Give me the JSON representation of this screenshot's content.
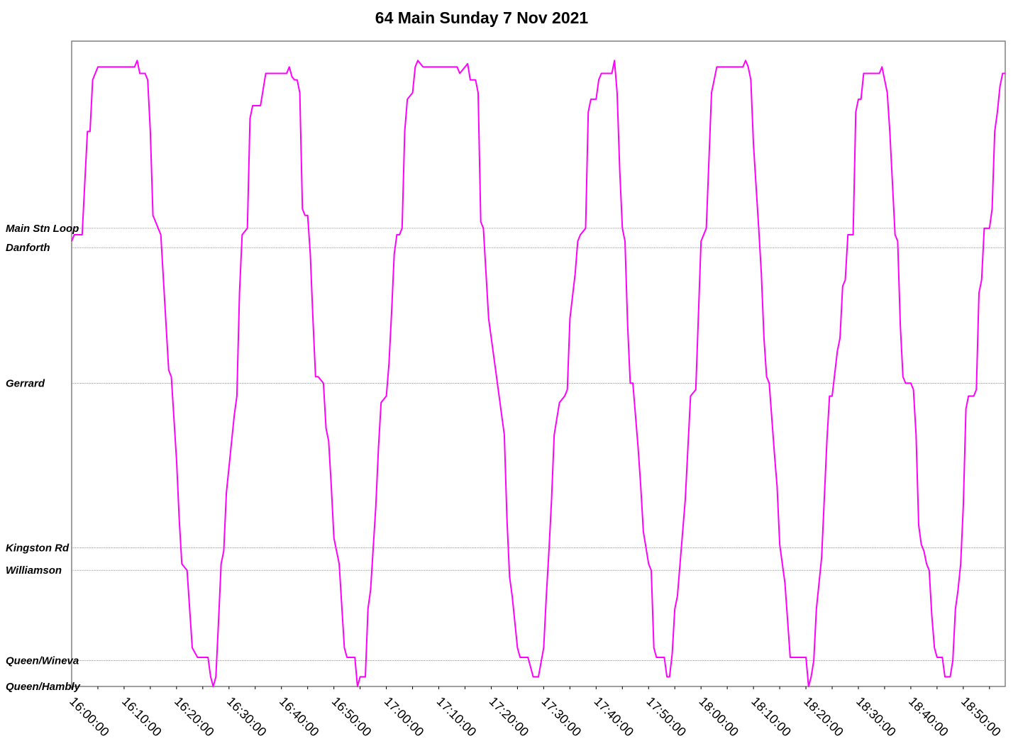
{
  "title": "64 Main Sunday 7 Nov 2021",
  "chart_data": {
    "type": "line",
    "title": "64 Main Sunday 7 Nov 2021",
    "xlabel": "",
    "ylabel": "",
    "x_range": [
      "16:00:00",
      "18:58:00"
    ],
    "x_ticks": [
      "16:00:00",
      "16:10:00",
      "16:20:00",
      "16:30:00",
      "16:40:00",
      "16:50:00",
      "17:00:00",
      "17:10:00",
      "17:20:00",
      "17:30:00",
      "17:40:00",
      "17:50:00",
      "18:00:00",
      "18:10:00",
      "18:20:00",
      "18:30:00",
      "18:40:00",
      "18:50:00"
    ],
    "y_stops": [
      {
        "name": "Main Stn Loop",
        "km": 7.1
      },
      {
        "name": "Danforth",
        "km": 6.8
      },
      {
        "name": "Gerrard",
        "km": 4.7
      },
      {
        "name": "Kingston Rd",
        "km": 2.15
      },
      {
        "name": "Williamson",
        "km": 1.8
      },
      {
        "name": "Queen/Wineva",
        "km": 0.4
      },
      {
        "name": "Queen/Hambly",
        "km": 0.0
      }
    ],
    "ylim": [
      0,
      10
    ],
    "grid": true,
    "series": [
      {
        "color": "#ff00ff",
        "points": [
          [
            "16:00:00",
            6.9
          ],
          [
            "16:00:30",
            7.0
          ],
          [
            "16:02:00",
            7.0
          ],
          [
            "16:02:30",
            7.8
          ],
          [
            "16:03:00",
            8.6
          ],
          [
            "16:03:30",
            8.6
          ],
          [
            "16:04:00",
            9.4
          ],
          [
            "16:05:00",
            9.6
          ],
          [
            "16:05:30",
            9.6
          ],
          [
            "16:06:00",
            9.6
          ],
          [
            "16:07:00",
            9.6
          ],
          [
            "16:08:00",
            9.6
          ],
          [
            "16:10:00",
            9.6
          ],
          [
            "16:12:00",
            9.6
          ],
          [
            "16:12:30",
            9.7
          ],
          [
            "16:13:00",
            9.5
          ],
          [
            "16:14:00",
            9.5
          ],
          [
            "16:14:30",
            9.4
          ],
          [
            "16:15:00",
            8.6
          ],
          [
            "16:15:30",
            7.3
          ],
          [
            "16:16:00",
            7.2
          ],
          [
            "16:17:00",
            7.0
          ],
          [
            "16:18:00",
            5.6
          ],
          [
            "16:18:30",
            4.9
          ],
          [
            "16:19:00",
            4.8
          ],
          [
            "16:20:00",
            3.5
          ],
          [
            "16:20:30",
            2.6
          ],
          [
            "16:21:00",
            1.9
          ],
          [
            "16:22:00",
            1.8
          ],
          [
            "16:23:00",
            0.6
          ],
          [
            "16:24:00",
            0.45
          ],
          [
            "16:25:00",
            0.45
          ],
          [
            "16:26:00",
            0.45
          ],
          [
            "16:26:30",
            0.15
          ],
          [
            "16:27:00",
            0.0
          ],
          [
            "16:27:30",
            0.15
          ],
          [
            "16:28:00",
            1.0
          ],
          [
            "16:28:30",
            1.9
          ],
          [
            "16:29:00",
            2.1
          ],
          [
            "16:29:30",
            3.0
          ],
          [
            "16:30:00",
            3.4
          ],
          [
            "16:31:00",
            4.2
          ],
          [
            "16:31:30",
            4.5
          ],
          [
            "16:32:00",
            6.1
          ],
          [
            "16:32:30",
            7.0
          ],
          [
            "16:33:30",
            7.1
          ],
          [
            "16:34:00",
            8.8
          ],
          [
            "16:34:30",
            9.0
          ],
          [
            "16:35:00",
            9.0
          ],
          [
            "16:36:00",
            9.0
          ],
          [
            "16:37:00",
            9.5
          ],
          [
            "16:38:00",
            9.5
          ],
          [
            "16:39:00",
            9.5
          ],
          [
            "16:40:00",
            9.5
          ],
          [
            "16:41:00",
            9.5
          ],
          [
            "16:41:30",
            9.6
          ],
          [
            "16:42:00",
            9.45
          ],
          [
            "16:42:30",
            9.4
          ],
          [
            "16:43:00",
            9.4
          ],
          [
            "16:43:30",
            9.2
          ],
          [
            "16:44:00",
            7.4
          ],
          [
            "16:44:30",
            7.3
          ],
          [
            "16:45:00",
            7.3
          ],
          [
            "16:45:30",
            6.7
          ],
          [
            "16:46:00",
            5.7
          ],
          [
            "16:46:30",
            4.8
          ],
          [
            "16:47:00",
            4.8
          ],
          [
            "16:48:00",
            4.7
          ],
          [
            "16:48:30",
            4.0
          ],
          [
            "16:49:00",
            3.8
          ],
          [
            "16:49:30",
            3.1
          ],
          [
            "16:50:00",
            2.3
          ],
          [
            "16:50:30",
            2.1
          ],
          [
            "16:51:00",
            1.9
          ],
          [
            "16:52:00",
            0.6
          ],
          [
            "16:52:30",
            0.45
          ],
          [
            "16:54:00",
            0.45
          ],
          [
            "16:54:30",
            0.0
          ],
          [
            "16:55:00",
            0.15
          ],
          [
            "16:56:00",
            0.15
          ],
          [
            "16:56:30",
            1.2
          ],
          [
            "16:57:00",
            1.5
          ],
          [
            "16:58:00",
            2.8
          ],
          [
            "16:58:30",
            3.7
          ],
          [
            "16:59:00",
            4.4
          ],
          [
            "17:00:00",
            4.5
          ],
          [
            "17:00:30",
            5.0
          ],
          [
            "17:01:00",
            5.8
          ],
          [
            "17:01:30",
            6.7
          ],
          [
            "17:02:00",
            7.0
          ],
          [
            "17:02:30",
            7.0
          ],
          [
            "17:03:00",
            7.1
          ],
          [
            "17:03:30",
            8.6
          ],
          [
            "17:04:00",
            9.1
          ],
          [
            "17:05:00",
            9.2
          ],
          [
            "17:05:30",
            9.6
          ],
          [
            "17:06:00",
            9.7
          ],
          [
            "17:07:00",
            9.6
          ],
          [
            "17:10:00",
            9.6
          ],
          [
            "17:12:00",
            9.6
          ],
          [
            "17:13:30",
            9.6
          ],
          [
            "17:14:00",
            9.5
          ],
          [
            "17:14:30",
            9.55
          ],
          [
            "17:15:00",
            9.6
          ],
          [
            "17:15:30",
            9.65
          ],
          [
            "17:16:00",
            9.4
          ],
          [
            "17:17:00",
            9.4
          ],
          [
            "17:17:30",
            9.2
          ],
          [
            "17:18:00",
            7.2
          ],
          [
            "17:18:30",
            7.1
          ],
          [
            "17:19:00",
            6.4
          ],
          [
            "17:19:30",
            5.7
          ],
          [
            "17:20:00",
            5.4
          ],
          [
            "17:21:00",
            4.8
          ],
          [
            "17:22:00",
            4.2
          ],
          [
            "17:22:30",
            3.9
          ],
          [
            "17:23:00",
            2.6
          ],
          [
            "17:23:30",
            1.7
          ],
          [
            "17:24:00",
            1.4
          ],
          [
            "17:25:00",
            0.6
          ],
          [
            "17:25:30",
            0.45
          ],
          [
            "17:27:00",
            0.45
          ],
          [
            "17:28:00",
            0.15
          ],
          [
            "17:29:00",
            0.15
          ],
          [
            "17:30:00",
            0.6
          ],
          [
            "17:30:30",
            1.4
          ],
          [
            "17:31:00",
            2.1
          ],
          [
            "17:31:30",
            2.9
          ],
          [
            "17:32:00",
            3.9
          ],
          [
            "17:33:00",
            4.4
          ],
          [
            "17:34:00",
            4.5
          ],
          [
            "17:34:30",
            4.6
          ],
          [
            "17:35:00",
            5.7
          ],
          [
            "17:36:00",
            6.4
          ],
          [
            "17:36:30",
            6.9
          ],
          [
            "17:37:00",
            7.0
          ],
          [
            "17:38:00",
            7.1
          ],
          [
            "17:38:30",
            8.9
          ],
          [
            "17:39:00",
            9.1
          ],
          [
            "17:40:00",
            9.1
          ],
          [
            "17:40:30",
            9.4
          ],
          [
            "17:41:00",
            9.5
          ],
          [
            "17:42:00",
            9.5
          ],
          [
            "17:43:00",
            9.5
          ],
          [
            "17:43:30",
            9.7
          ],
          [
            "17:44:00",
            9.2
          ],
          [
            "17:44:30",
            8.0
          ],
          [
            "17:45:00",
            7.1
          ],
          [
            "17:45:30",
            6.9
          ],
          [
            "17:46:00",
            5.6
          ],
          [
            "17:46:30",
            4.7
          ],
          [
            "17:47:00",
            4.7
          ],
          [
            "17:48:00",
            3.7
          ],
          [
            "17:48:30",
            3.1
          ],
          [
            "17:49:00",
            2.4
          ],
          [
            "17:50:00",
            1.9
          ],
          [
            "17:50:30",
            1.8
          ],
          [
            "17:51:00",
            0.6
          ],
          [
            "17:51:30",
            0.45
          ],
          [
            "17:53:00",
            0.45
          ],
          [
            "17:53:30",
            0.15
          ],
          [
            "17:54:00",
            0.15
          ],
          [
            "17:54:30",
            0.5
          ],
          [
            "17:55:00",
            1.2
          ],
          [
            "17:55:30",
            1.4
          ],
          [
            "17:56:00",
            1.9
          ],
          [
            "17:57:00",
            2.9
          ],
          [
            "17:58:00",
            4.5
          ],
          [
            "17:59:00",
            4.6
          ],
          [
            "18:00:00",
            6.9
          ],
          [
            "18:01:00",
            7.1
          ],
          [
            "18:02:00",
            9.2
          ],
          [
            "18:03:00",
            9.6
          ],
          [
            "18:05:00",
            9.6
          ],
          [
            "18:06:00",
            9.6
          ],
          [
            "18:07:00",
            9.6
          ],
          [
            "18:08:00",
            9.6
          ],
          [
            "18:08:30",
            9.7
          ],
          [
            "18:09:00",
            9.6
          ],
          [
            "18:09:30",
            9.4
          ],
          [
            "18:10:00",
            8.4
          ],
          [
            "18:11:00",
            7.1
          ],
          [
            "18:11:30",
            6.4
          ],
          [
            "18:12:00",
            5.4
          ],
          [
            "18:12:30",
            4.8
          ],
          [
            "18:13:00",
            4.7
          ],
          [
            "18:14:00",
            3.6
          ],
          [
            "18:14:30",
            3.1
          ],
          [
            "18:15:00",
            2.2
          ],
          [
            "18:16:00",
            1.6
          ],
          [
            "18:17:00",
            0.45
          ],
          [
            "18:19:00",
            0.45
          ],
          [
            "18:20:00",
            0.45
          ],
          [
            "18:20:30",
            0.0
          ],
          [
            "18:21:00",
            0.15
          ],
          [
            "18:21:30",
            0.4
          ],
          [
            "18:22:00",
            1.2
          ],
          [
            "18:23:00",
            2.0
          ],
          [
            "18:24:00",
            3.8
          ],
          [
            "18:24:30",
            4.5
          ],
          [
            "18:25:00",
            4.5
          ],
          [
            "18:26:00",
            5.2
          ],
          [
            "18:26:30",
            5.4
          ],
          [
            "18:27:00",
            6.2
          ],
          [
            "18:27:30",
            6.3
          ],
          [
            "18:28:00",
            7.0
          ],
          [
            "18:29:00",
            7.0
          ],
          [
            "18:29:30",
            8.9
          ],
          [
            "18:30:00",
            9.1
          ],
          [
            "18:30:30",
            9.1
          ],
          [
            "18:31:00",
            9.5
          ],
          [
            "18:32:00",
            9.5
          ],
          [
            "18:33:00",
            9.5
          ],
          [
            "18:34:00",
            9.5
          ],
          [
            "18:34:30",
            9.6
          ],
          [
            "18:35:00",
            9.4
          ],
          [
            "18:35:30",
            9.2
          ],
          [
            "18:36:00",
            8.6
          ],
          [
            "18:37:00",
            7.0
          ],
          [
            "18:37:30",
            6.9
          ],
          [
            "18:38:00",
            5.6
          ],
          [
            "18:38:30",
            4.8
          ],
          [
            "18:39:00",
            4.7
          ],
          [
            "18:40:00",
            4.7
          ],
          [
            "18:40:30",
            4.6
          ],
          [
            "18:41:00",
            3.9
          ],
          [
            "18:41:30",
            2.5
          ],
          [
            "18:42:00",
            2.2
          ],
          [
            "18:42:30",
            2.1
          ],
          [
            "18:43:00",
            1.9
          ],
          [
            "18:43:30",
            1.8
          ],
          [
            "18:44:00",
            1.1
          ],
          [
            "18:44:30",
            0.6
          ],
          [
            "18:45:00",
            0.45
          ],
          [
            "18:46:00",
            0.45
          ],
          [
            "18:46:30",
            0.15
          ],
          [
            "18:47:00",
            0.15
          ],
          [
            "18:47:30",
            0.15
          ],
          [
            "18:48:00",
            0.4
          ],
          [
            "18:48:30",
            1.2
          ],
          [
            "18:49:00",
            1.5
          ],
          [
            "18:49:30",
            1.9
          ],
          [
            "18:50:00",
            2.8
          ],
          [
            "18:50:30",
            4.3
          ],
          [
            "18:51:00",
            4.5
          ],
          [
            "18:52:00",
            4.5
          ],
          [
            "18:52:30",
            4.6
          ],
          [
            "18:53:00",
            6.1
          ],
          [
            "18:53:30",
            6.3
          ],
          [
            "18:54:00",
            7.1
          ],
          [
            "18:55:00",
            7.1
          ],
          [
            "18:55:30",
            7.4
          ],
          [
            "18:56:00",
            8.6
          ],
          [
            "18:56:30",
            8.9
          ],
          [
            "18:57:00",
            9.3
          ],
          [
            "18:57:30",
            9.5
          ],
          [
            "18:58:00",
            9.5
          ]
        ]
      }
    ]
  }
}
